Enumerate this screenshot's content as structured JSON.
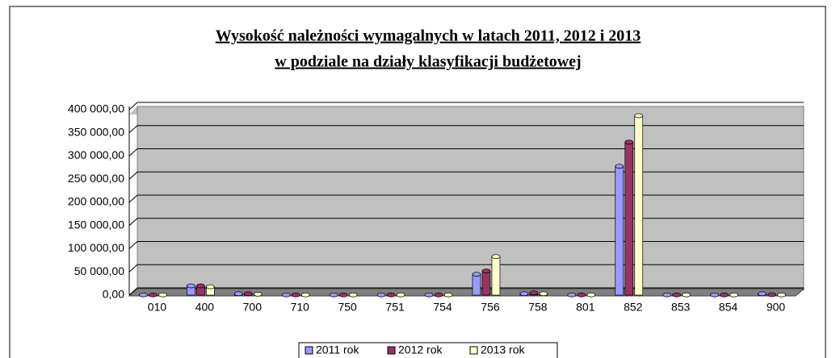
{
  "chart_data": {
    "type": "bar",
    "title": "Wysokość należności wymagalnych w latach 2011, 2012 i 2013",
    "subtitle": "w podziale na działy klasyfikacji budżetowej",
    "categories": [
      "010",
      "400",
      "700",
      "710",
      "750",
      "751",
      "754",
      "756",
      "758",
      "801",
      "852",
      "853",
      "854",
      "900"
    ],
    "series": [
      {
        "name": "2011 rok",
        "color": "#9999ff",
        "values": [
          500,
          20000,
          3000,
          500,
          500,
          500,
          500,
          45000,
          3000,
          500,
          278000,
          500,
          500,
          3000
        ]
      },
      {
        "name": "2012 rok",
        "color": "#993366",
        "values": [
          500,
          20000,
          3000,
          500,
          500,
          500,
          500,
          52000,
          5000,
          500,
          330000,
          500,
          500,
          1000
        ]
      },
      {
        "name": "2013 rok",
        "color": "#ffffcc",
        "values": [
          500,
          18000,
          2000,
          500,
          500,
          500,
          500,
          83000,
          3000,
          500,
          387000,
          500,
          500,
          500
        ]
      }
    ],
    "ylim": [
      0,
      400000
    ],
    "yticks": [
      {
        "value": 0,
        "label": "0,00"
      },
      {
        "value": 50000,
        "label": "50 000,00"
      },
      {
        "value": 100000,
        "label": "100 000,00"
      },
      {
        "value": 150000,
        "label": "150 000,00"
      },
      {
        "value": 200000,
        "label": "200 000,00"
      },
      {
        "value": 250000,
        "label": "250 000,00"
      },
      {
        "value": 300000,
        "label": "300 000,00"
      },
      {
        "value": 350000,
        "label": "350 000,00"
      },
      {
        "value": 400000,
        "label": "400 000,00"
      }
    ],
    "grid": true
  }
}
